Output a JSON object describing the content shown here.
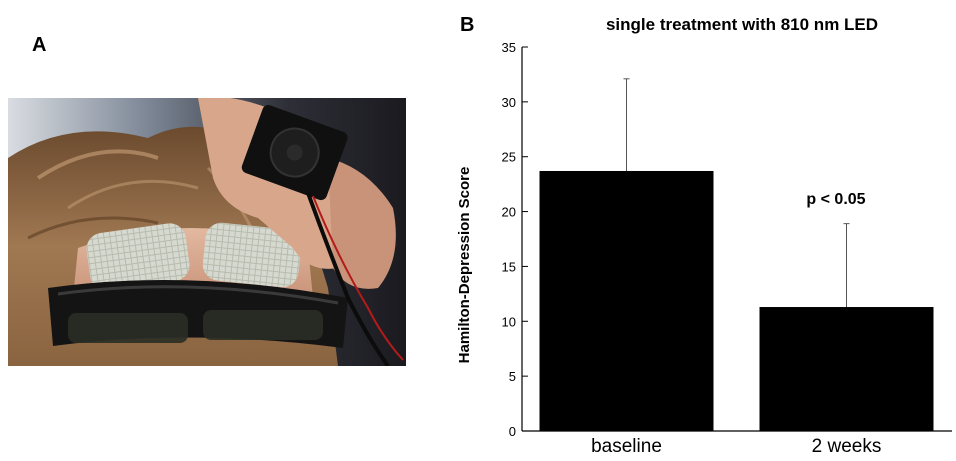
{
  "panels": {
    "a_label": "A",
    "b_label": "B"
  },
  "chart_data": {
    "type": "bar",
    "title": "single treatment with 810 nm LED",
    "ylabel": "Hamilton-Depression Score",
    "xlabel": "",
    "categories": [
      "baseline",
      "2  weeks"
    ],
    "values": [
      23.7,
      11.3
    ],
    "error_upper": [
      32.1,
      18.9
    ],
    "ylim": [
      0,
      35
    ],
    "yticks": [
      0,
      5,
      10,
      15,
      20,
      25,
      30,
      35
    ],
    "annotation": "p < 0.05",
    "bar_color": "#000000",
    "grid": false
  }
}
